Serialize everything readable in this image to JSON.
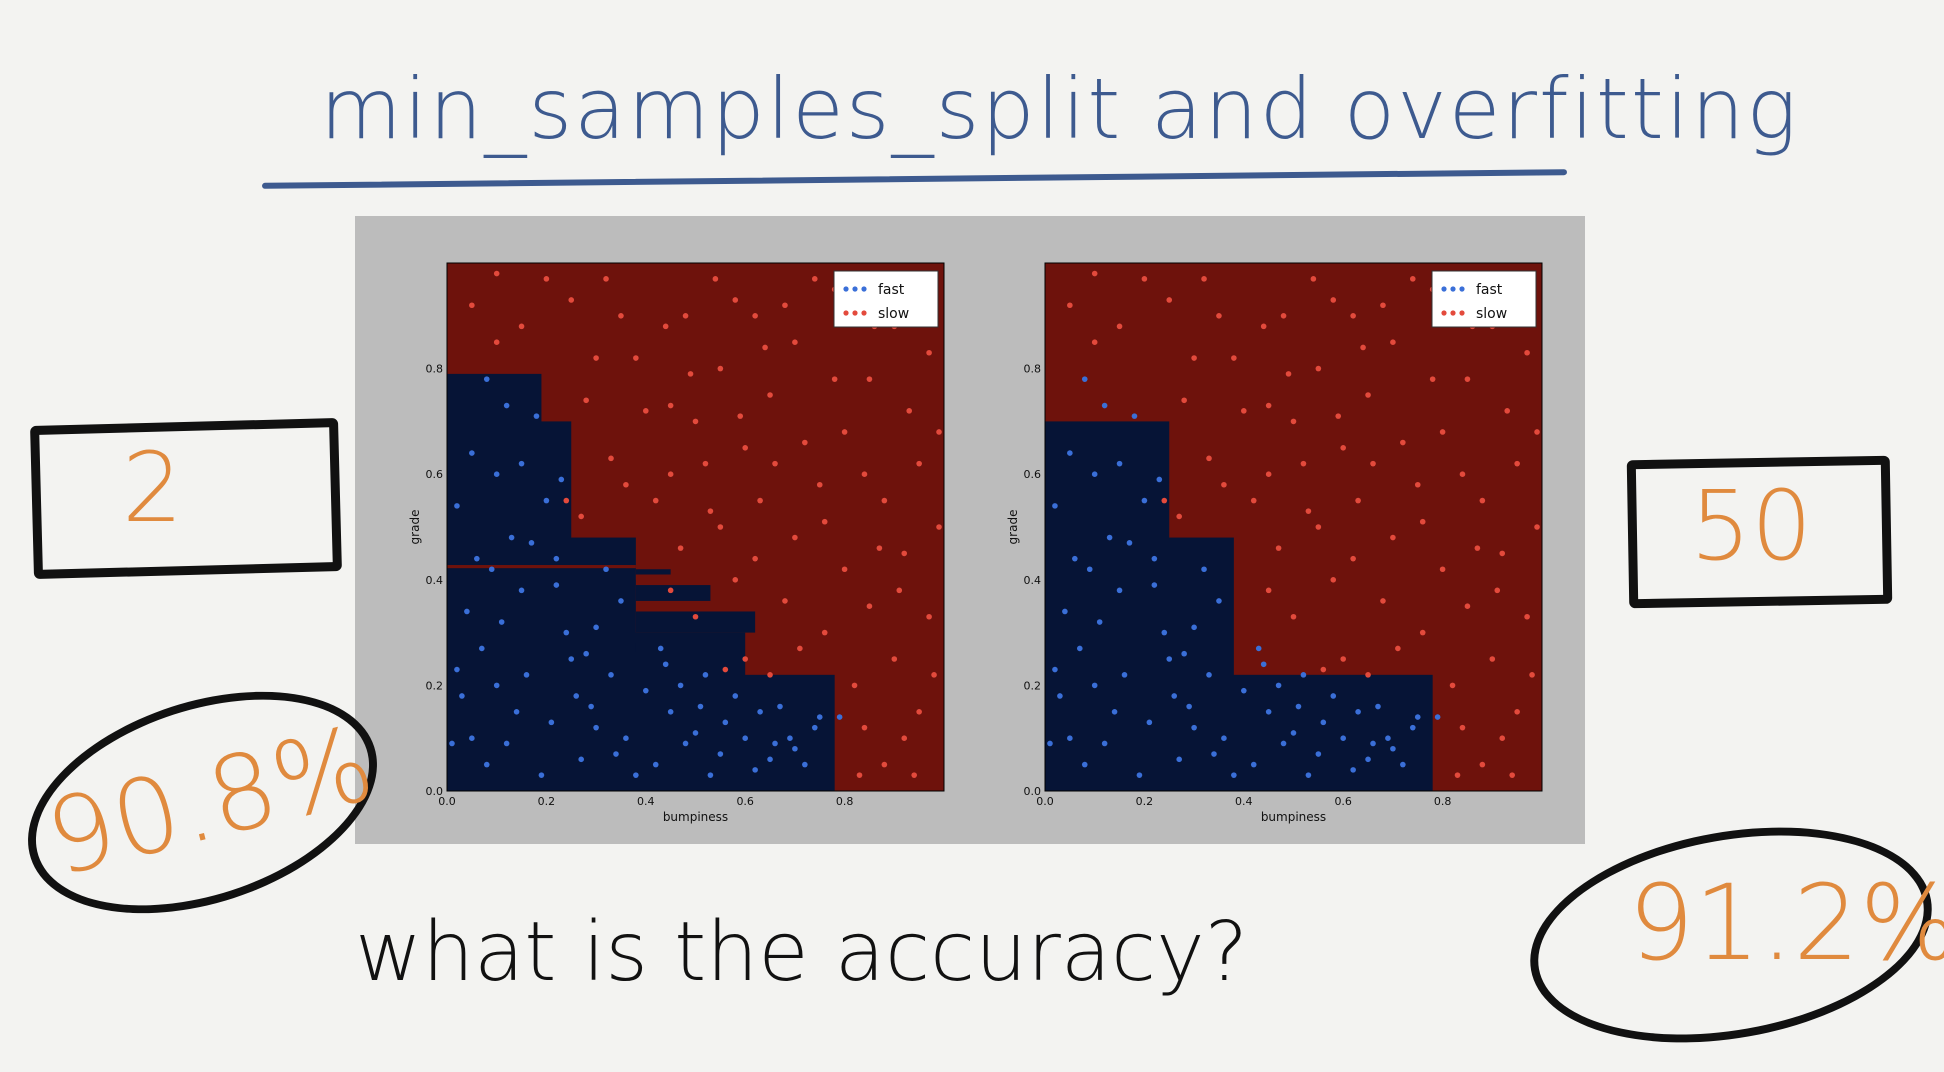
{
  "title": "min_samples_split and overfitting",
  "question": "what is the accuracy?",
  "colors": {
    "fast_region": "#061436",
    "slow_region": "#6e120c",
    "fast_point": "#3a6fd8",
    "slow_point": "#e34a3c",
    "pen_blue": "#3d5a8f",
    "pen_orange": "#e08a3e"
  },
  "left": {
    "min_samples_split": "2",
    "accuracy": "90.8%"
  },
  "right": {
    "min_samples_split": "50",
    "accuracy": "91.2%"
  },
  "chart_data": [
    {
      "type": "scatter",
      "xlabel": "bumpiness",
      "ylabel": "grade",
      "xlim": [
        0,
        1
      ],
      "ylim": [
        0,
        1
      ],
      "xticks": [
        "0.0",
        "0.2",
        "0.4",
        "0.6",
        "0.8"
      ],
      "yticks": [
        "0.0",
        "0.2",
        "0.4",
        "0.6",
        "0.8"
      ],
      "legend": [
        "fast",
        "slow"
      ],
      "legend_position": "top-right",
      "decision_region_fast": [
        [
          0.0,
          0.0,
          0.78,
          0.22
        ],
        [
          0.0,
          0.0,
          0.6,
          0.3
        ],
        [
          0.0,
          0.0,
          0.38,
          0.48
        ],
        [
          0.0,
          0.0,
          0.25,
          0.7
        ],
        [
          0.0,
          0.0,
          0.19,
          0.79
        ],
        [
          0.38,
          0.3,
          0.62,
          0.34
        ],
        [
          0.38,
          0.36,
          0.53,
          0.39
        ],
        [
          0.38,
          0.41,
          0.45,
          0.42
        ],
        [
          0.38,
          0.265,
          0.55,
          0.28
        ]
      ],
      "decision_region_slow": [
        [
          0.0,
          0.422,
          0.38,
          0.428
        ],
        [
          0.38,
          0.4,
          1.0,
          0.41
        ]
      ]
    },
    {
      "type": "scatter",
      "xlabel": "bumpiness",
      "ylabel": "grade",
      "xlim": [
        0,
        1
      ],
      "ylim": [
        0,
        1
      ],
      "xticks": [
        "0.0",
        "0.2",
        "0.4",
        "0.6",
        "0.8"
      ],
      "yticks": [
        "0.0",
        "0.2",
        "0.4",
        "0.6",
        "0.8"
      ],
      "legend": [
        "fast",
        "slow"
      ],
      "legend_position": "top-right",
      "decision_region_fast": [
        [
          0.0,
          0.0,
          0.78,
          0.22
        ],
        [
          0.0,
          0.0,
          0.38,
          0.48
        ],
        [
          0.0,
          0.0,
          0.25,
          0.7
        ]
      ],
      "decision_region_slow": []
    }
  ],
  "points": {
    "fast": [
      [
        0.02,
        0.54
      ],
      [
        0.05,
        0.64
      ],
      [
        0.03,
        0.18
      ],
      [
        0.08,
        0.78
      ],
      [
        0.1,
        0.6
      ],
      [
        0.12,
        0.73
      ],
      [
        0.15,
        0.62
      ],
      [
        0.17,
        0.47
      ],
      [
        0.22,
        0.39
      ],
      [
        0.3,
        0.31
      ],
      [
        0.35,
        0.36
      ],
      [
        0.33,
        0.22
      ],
      [
        0.29,
        0.16
      ],
      [
        0.12,
        0.09
      ],
      [
        0.14,
        0.15
      ],
      [
        0.21,
        0.13
      ],
      [
        0.04,
        0.34
      ],
      [
        0.07,
        0.27
      ],
      [
        0.09,
        0.42
      ],
      [
        0.25,
        0.25
      ],
      [
        0.45,
        0.15
      ],
      [
        0.47,
        0.2
      ],
      [
        0.5,
        0.11
      ],
      [
        0.52,
        0.22
      ],
      [
        0.55,
        0.07
      ],
      [
        0.6,
        0.1
      ],
      [
        0.63,
        0.15
      ],
      [
        0.66,
        0.09
      ],
      [
        0.69,
        0.1
      ],
      [
        0.72,
        0.05
      ],
      [
        0.74,
        0.12
      ],
      [
        0.75,
        0.14
      ],
      [
        0.7,
        0.08
      ],
      [
        0.65,
        0.06
      ],
      [
        0.58,
        0.18
      ],
      [
        0.42,
        0.05
      ],
      [
        0.36,
        0.1
      ],
      [
        0.27,
        0.06
      ],
      [
        0.19,
        0.03
      ],
      [
        0.08,
        0.05
      ],
      [
        0.4,
        0.19
      ],
      [
        0.44,
        0.24
      ],
      [
        0.2,
        0.55
      ],
      [
        0.13,
        0.48
      ],
      [
        0.06,
        0.44
      ],
      [
        0.23,
        0.59
      ],
      [
        0.18,
        0.71
      ],
      [
        0.11,
        0.32
      ],
      [
        0.16,
        0.22
      ],
      [
        0.32,
        0.42
      ],
      [
        0.24,
        0.3
      ],
      [
        0.01,
        0.09
      ],
      [
        0.38,
        0.03
      ],
      [
        0.56,
        0.13
      ],
      [
        0.62,
        0.04
      ],
      [
        0.48,
        0.09
      ],
      [
        0.3,
        0.12
      ],
      [
        0.26,
        0.18
      ],
      [
        0.1,
        0.2
      ],
      [
        0.05,
        0.1
      ],
      [
        0.79,
        0.14
      ],
      [
        0.51,
        0.16
      ],
      [
        0.43,
        0.27
      ],
      [
        0.34,
        0.07
      ],
      [
        0.67,
        0.16
      ],
      [
        0.15,
        0.38
      ],
      [
        0.22,
        0.44
      ],
      [
        0.28,
        0.26
      ],
      [
        0.53,
        0.03
      ],
      [
        0.02,
        0.23
      ]
    ],
    "slow": [
      [
        0.42,
        0.55
      ],
      [
        0.45,
        0.6
      ],
      [
        0.5,
        0.7
      ],
      [
        0.55,
        0.8
      ],
      [
        0.6,
        0.65
      ],
      [
        0.65,
        0.75
      ],
      [
        0.7,
        0.85
      ],
      [
        0.75,
        0.58
      ],
      [
        0.8,
        0.68
      ],
      [
        0.85,
        0.78
      ],
      [
        0.9,
        0.88
      ],
      [
        0.95,
        0.62
      ],
      [
        0.48,
        0.9
      ],
      [
        0.58,
        0.93
      ],
      [
        0.68,
        0.92
      ],
      [
        0.78,
        0.95
      ],
      [
        0.88,
        0.55
      ],
      [
        0.92,
        0.45
      ],
      [
        0.85,
        0.35
      ],
      [
        0.9,
        0.25
      ],
      [
        0.95,
        0.15
      ],
      [
        0.88,
        0.05
      ],
      [
        0.82,
        0.2
      ],
      [
        0.8,
        0.42
      ],
      [
        0.7,
        0.48
      ],
      [
        0.62,
        0.44
      ],
      [
        0.55,
        0.5
      ],
      [
        0.47,
        0.46
      ],
      [
        0.3,
        0.82
      ],
      [
        0.35,
        0.9
      ],
      [
        0.25,
        0.93
      ],
      [
        0.15,
        0.88
      ],
      [
        0.05,
        0.92
      ],
      [
        0.1,
        0.85
      ],
      [
        0.4,
        0.72
      ],
      [
        0.33,
        0.63
      ],
      [
        0.28,
        0.74
      ],
      [
        0.38,
        0.82
      ],
      [
        0.52,
        0.62
      ],
      [
        0.63,
        0.55
      ],
      [
        0.72,
        0.66
      ],
      [
        0.78,
        0.78
      ],
      [
        0.86,
        0.88
      ],
      [
        0.93,
        0.72
      ],
      [
        0.97,
        0.83
      ],
      [
        0.99,
        0.5
      ],
      [
        0.97,
        0.33
      ],
      [
        0.92,
        0.1
      ],
      [
        0.84,
        0.12
      ],
      [
        0.76,
        0.3
      ],
      [
        0.68,
        0.36
      ],
      [
        0.58,
        0.4
      ],
      [
        0.5,
        0.33
      ],
      [
        0.45,
        0.38
      ],
      [
        0.6,
        0.25
      ],
      [
        0.65,
        0.22
      ],
      [
        0.56,
        0.23
      ],
      [
        0.24,
        0.55
      ],
      [
        0.27,
        0.52
      ],
      [
        0.44,
        0.88
      ],
      [
        0.54,
        0.97
      ],
      [
        0.64,
        0.84
      ],
      [
        0.74,
        0.97
      ],
      [
        0.82,
        0.9
      ],
      [
        0.96,
        0.95
      ],
      [
        0.2,
        0.97
      ],
      [
        0.1,
        0.98
      ],
      [
        0.45,
        0.73
      ],
      [
        0.66,
        0.62
      ],
      [
        0.84,
        0.6
      ],
      [
        0.91,
        0.38
      ],
      [
        0.98,
        0.22
      ],
      [
        0.83,
        0.03
      ],
      [
        0.94,
        0.03
      ],
      [
        0.71,
        0.27
      ],
      [
        0.53,
        0.53
      ],
      [
        0.36,
        0.58
      ],
      [
        0.49,
        0.79
      ],
      [
        0.59,
        0.71
      ],
      [
        0.76,
        0.51
      ],
      [
        0.87,
        0.46
      ],
      [
        0.99,
        0.68
      ],
      [
        0.32,
        0.97
      ],
      [
        0.62,
        0.9
      ]
    ]
  }
}
